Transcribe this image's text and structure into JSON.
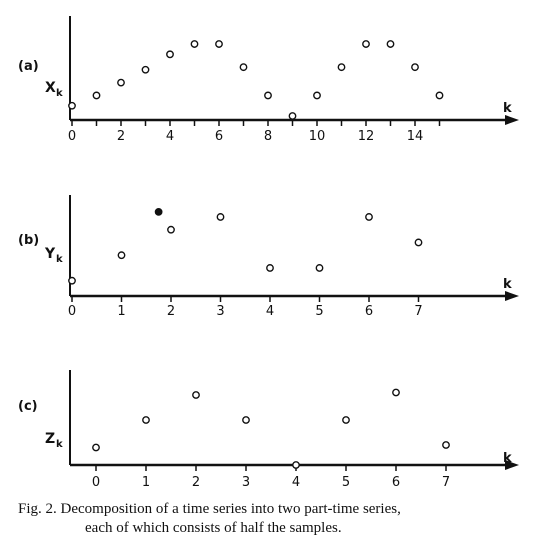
{
  "caption": {
    "line1": "Fig. 2.    Decomposition of a time series into two part-time series,",
    "line2": "each of which consists of half the samples."
  },
  "chart_data": [
    {
      "type": "scatter",
      "panel_label": "(a)",
      "ylabel": "X",
      "ylabel_sub": "k",
      "xlabel": "k",
      "x_tick_labels": [
        "0",
        "2",
        "4",
        "6",
        "8",
        "10",
        "12",
        "14"
      ],
      "x_ticks": [
        0,
        1,
        2,
        3,
        4,
        5,
        6,
        7,
        8,
        9,
        10,
        11,
        12,
        13,
        14,
        15
      ],
      "series": [
        {
          "marker": "open-circle",
          "x": [
            0,
            1,
            2,
            3,
            4,
            5,
            6,
            7,
            8,
            9,
            10,
            11,
            12,
            13,
            14,
            15
          ],
          "y": [
            0.4,
            0.8,
            1.3,
            1.8,
            2.4,
            2.8,
            2.8,
            1.9,
            0.8,
            0.0,
            0.8,
            1.9,
            2.8,
            2.8,
            1.9,
            0.8
          ]
        }
      ]
    },
    {
      "type": "scatter",
      "panel_label": "(b)",
      "ylabel": "Y",
      "ylabel_sub": "k",
      "xlabel": "k",
      "x_tick_labels": [
        "0",
        "1",
        "2",
        "3",
        "4",
        "5",
        "6",
        "7"
      ],
      "x_ticks": [
        0,
        1,
        2,
        3,
        4,
        5,
        6,
        7
      ],
      "series": [
        {
          "marker": "open-circle",
          "x": [
            0,
            1,
            2,
            3,
            4,
            5,
            6,
            7
          ],
          "y": [
            0.6,
            1.6,
            2.6,
            3.1,
            1.1,
            1.1,
            3.1,
            2.1
          ]
        },
        {
          "marker": "filled-circle",
          "x": [
            1.75
          ],
          "y": [
            3.3
          ]
        }
      ]
    },
    {
      "type": "scatter",
      "panel_label": "(c)",
      "ylabel": "Z",
      "ylabel_sub": "k",
      "xlabel": "k",
      "x_tick_labels": [
        "0",
        "1",
        "2",
        "3",
        "4",
        "5",
        "6",
        "7"
      ],
      "x_ticks": [
        0,
        1,
        2,
        3,
        4,
        5,
        6,
        7
      ],
      "series": [
        {
          "marker": "open-circle",
          "x": [
            0,
            1,
            2,
            3,
            4,
            5,
            6,
            7
          ],
          "y": [
            0.7,
            1.8,
            2.8,
            1.8,
            0.0,
            1.8,
            2.9,
            0.8
          ]
        }
      ]
    }
  ]
}
